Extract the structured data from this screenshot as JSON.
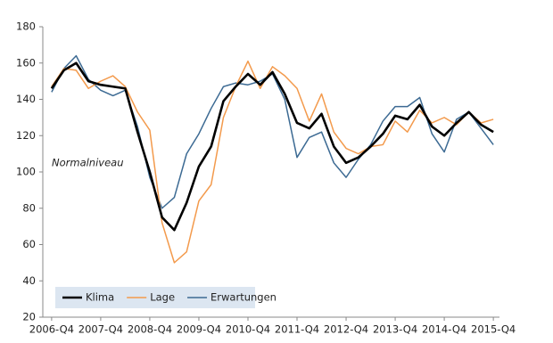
{
  "chart_data": {
    "type": "line",
    "categories": [
      "2006-Q4",
      null,
      null,
      null,
      "2007-Q4",
      null,
      null,
      null,
      "2008-Q4",
      null,
      null,
      null,
      "2009-Q4",
      null,
      null,
      null,
      "2010-Q4",
      null,
      null,
      null,
      "2011-Q4",
      null,
      null,
      null,
      "2012-Q4",
      null,
      null,
      null,
      "2013-Q4",
      null,
      null,
      null,
      "2014-Q4",
      null,
      null,
      null,
      "2015-Q4"
    ],
    "series": [
      {
        "name": "Klima",
        "color": "#000000",
        "width": 2.6,
        "values": [
          146,
          156,
          160,
          150,
          148,
          147,
          146,
          122,
          100,
          75,
          68,
          83,
          103,
          114,
          139,
          147,
          154,
          148,
          155,
          143,
          127,
          124,
          132,
          114,
          105,
          108,
          114,
          121,
          131,
          129,
          137,
          125,
          120,
          127,
          133,
          126,
          122
        ]
      },
      {
        "name": "Lage",
        "color": "#f39a4c",
        "width": 1.5,
        "values": [
          147,
          157,
          156,
          146,
          150,
          153,
          147,
          133,
          123,
          72,
          50,
          56,
          84,
          93,
          130,
          147,
          161,
          146,
          158,
          153,
          146,
          128,
          143,
          122,
          113,
          110,
          114,
          115,
          128,
          122,
          134,
          127,
          130,
          126,
          133,
          127,
          129
        ]
      },
      {
        "name": "Erwartungen",
        "color": "#3c6a93",
        "width": 1.5,
        "values": [
          144,
          157,
          164,
          151,
          145,
          142,
          145,
          125,
          97,
          80,
          86,
          110,
          121,
          135,
          147,
          149,
          148,
          150,
          154,
          140,
          108,
          119,
          122,
          105,
          97,
          107,
          115,
          128,
          136,
          136,
          141,
          121,
          111,
          129,
          133,
          124,
          115
        ]
      }
    ],
    "ylim": [
      20,
      180
    ],
    "yticks": [
      20,
      40,
      60,
      80,
      100,
      120,
      140,
      160,
      180
    ],
    "annotation": "Normalniveau",
    "legend": "lower left",
    "grid": false
  }
}
